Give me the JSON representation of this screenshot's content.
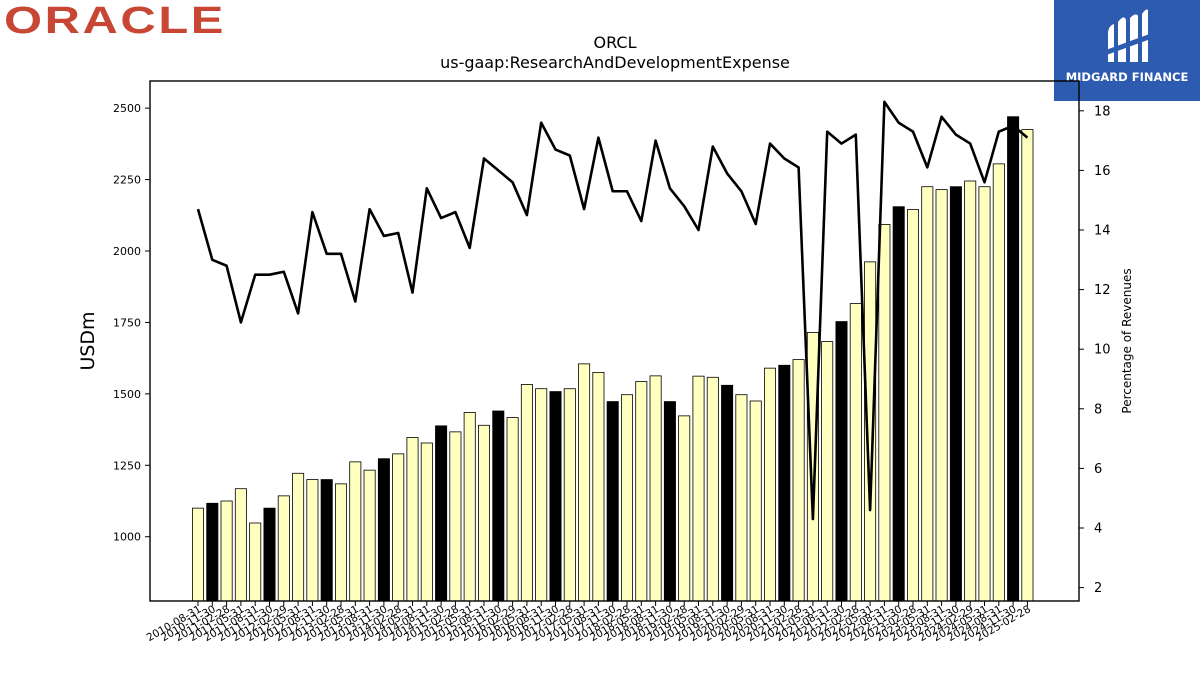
{
  "logos": {
    "left_brand": "ORACLE",
    "left_brand_color": "#c74634",
    "right_brand": "MIDGARD FINANCE",
    "right_brand_bg": "#2c5bb0"
  },
  "chart_data": {
    "type": "bar",
    "title": "ORCL",
    "subtitle": "us-gaap:ResearchAndDevelopmentExpense",
    "ylabel": "USDm",
    "y2label": "Percentage of Revenues",
    "ylim": [
      775,
      2595
    ],
    "y2lim": [
      1.55,
      19.0
    ],
    "yticks": [
      1000,
      1250,
      1500,
      1750,
      2000,
      2250,
      2500
    ],
    "y2ticks": [
      2,
      4,
      6,
      8,
      10,
      12,
      14,
      16,
      18
    ],
    "bar_colors": {
      "quarter": "#ffffc0",
      "fiscal_year_end": "#000000"
    },
    "line_color": "#000000",
    "categories": [
      "2010-08-31",
      "2010-11-30",
      "2011-02-28",
      "2011-05-31",
      "2011-08-31",
      "2011-11-30",
      "2012-02-29",
      "2012-05-31",
      "2012-08-31",
      "2012-11-30",
      "2013-02-28",
      "2013-05-31",
      "2013-08-31",
      "2013-11-30",
      "2014-02-28",
      "2014-05-31",
      "2014-08-31",
      "2014-11-30",
      "2015-02-28",
      "2015-05-31",
      "2015-08-31",
      "2015-11-30",
      "2016-02-29",
      "2016-05-31",
      "2016-08-31",
      "2016-11-30",
      "2017-02-28",
      "2017-05-31",
      "2017-08-31",
      "2017-11-30",
      "2018-02-28",
      "2018-05-31",
      "2018-08-31",
      "2018-11-30",
      "2019-02-28",
      "2019-05-31",
      "2019-08-31",
      "2019-11-30",
      "2020-02-29",
      "2020-05-31",
      "2020-08-31",
      "2020-11-30",
      "2021-02-28",
      "2021-05-31",
      "2021-08-31",
      "2021-11-30",
      "2022-02-28",
      "2022-05-31",
      "2022-08-31",
      "2022-11-30",
      "2023-02-28",
      "2023-05-31",
      "2023-08-31",
      "2023-11-30",
      "2024-02-29",
      "2024-05-31",
      "2024-08-31",
      "2024-11-30",
      "2025-02-28"
    ],
    "xtick_labels": [
      "2010-08-31",
      "2010-11-30",
      "2011-02-28",
      "2011-05-31",
      "2011-08-31",
      "2011-11-30",
      "2012-02-29",
      "2012-05-31",
      "2012-08-31",
      "2012-11-30",
      "2013-02-28",
      "2013-05-31",
      "2013-08-31",
      "2013-11-30",
      "2014-02-28",
      "2014-05-31",
      "2014-08-31",
      "2014-11-30",
      "2015-02-28",
      "2015-05-31",
      "2015-08-31",
      "2015-11-30",
      "2016-02-29",
      "2016-05-31",
      "2016-08-31",
      "2016-11-30",
      "2017-02-28",
      "2017-05-31",
      "2017-08-31",
      "2017-11-30",
      "2018-02-28",
      "2018-05-31",
      "2018-08-31",
      "2018-11-30",
      "2019-02-28",
      "2019-05-31",
      "2019-08-31",
      "2019-11-30",
      "2020-02-29",
      "2020-05-31",
      "2020-08-31",
      "2020-11-30",
      "2021-02-28",
      "2021-05-31",
      "2021-08-31",
      "2021-11-30",
      "2022-02-28",
      "2022-05-31",
      "2022-08-31",
      "2022-11-30",
      "2023-02-28",
      "2023-05-31",
      "2023-08-31",
      "2023-11-30",
      "2024-02-29",
      "2024-05-31",
      "2024-08-31",
      "2024-11-30",
      "2025-02-28"
    ],
    "series": [
      {
        "kind": "bar",
        "values": [
          1100,
          1117,
          1125,
          1168,
          1048,
          1100,
          1143,
          1222,
          1200,
          1200,
          1185,
          1262,
          1233,
          1273,
          1290,
          1347,
          1328,
          1388,
          1367,
          1435,
          1390,
          1440,
          1417,
          1533,
          1518,
          1508,
          1518,
          1605,
          1575,
          1473,
          1497,
          1543,
          1563,
          1473,
          1423,
          1562,
          1558,
          1530,
          1497,
          1475,
          1590,
          1600,
          1620,
          1715,
          1683,
          1753,
          1816,
          1962,
          2093,
          2155,
          2145,
          2225,
          2215,
          2225,
          2245,
          2225,
          2305,
          2470,
          2425
        ],
        "fiscal_year_end": [
          false,
          true,
          false,
          false,
          false,
          true,
          false,
          false,
          false,
          true,
          false,
          false,
          false,
          true,
          false,
          false,
          false,
          true,
          false,
          false,
          false,
          true,
          false,
          false,
          false,
          true,
          false,
          false,
          false,
          true,
          false,
          false,
          false,
          true,
          false,
          false,
          false,
          true,
          false,
          false,
          false,
          true,
          false,
          false,
          false,
          true,
          false,
          false,
          false,
          true,
          false,
          false,
          false,
          true,
          false,
          false,
          false,
          true,
          false
        ]
      },
      {
        "kind": "line",
        "axis": "right",
        "values": [
          14.7,
          13.0,
          12.8,
          10.9,
          12.5,
          12.5,
          12.6,
          11.2,
          14.6,
          13.2,
          13.2,
          11.6,
          14.7,
          13.8,
          13.9,
          11.9,
          15.4,
          14.4,
          14.6,
          13.4,
          16.4,
          16.0,
          15.6,
          14.5,
          17.6,
          16.7,
          16.5,
          14.7,
          17.1,
          15.3,
          15.3,
          14.3,
          17.0,
          15.4,
          14.8,
          14.0,
          16.8,
          15.9,
          15.3,
          14.2,
          16.9,
          16.4,
          16.1,
          4.3,
          17.3,
          16.9,
          17.2,
          4.6,
          18.3,
          17.6,
          17.3,
          16.1,
          17.8,
          17.2,
          16.9,
          15.6,
          17.3,
          17.5,
          17.1
        ]
      }
    ]
  }
}
